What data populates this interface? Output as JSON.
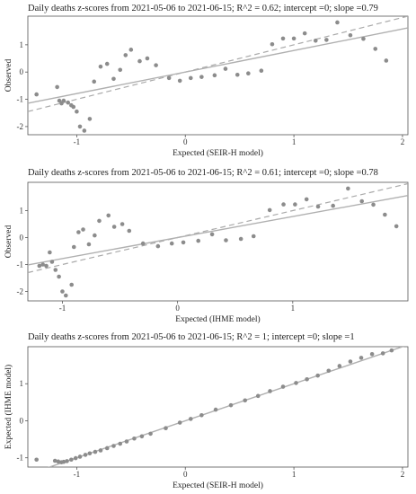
{
  "charts": [
    {
      "type": "scatter",
      "title": "Daily deaths z-scores from 2021-05-06 to 2021-06-15; R^2 = 0.62; intercept =0; slope =0.79",
      "xlabel": "Expected (SEIR-H model)",
      "ylabel": "Observed",
      "xlim": [
        -1.45,
        2.05
      ],
      "ylim": [
        -2.3,
        2.05
      ],
      "xticks": [
        -1,
        0,
        1,
        2
      ],
      "yticks": [
        -2,
        -1,
        0,
        1
      ],
      "fit_slope": 0.79,
      "fit_intercept": 0,
      "identity_line": true,
      "points": [
        [
          -1.37,
          -0.82
        ],
        [
          -1.18,
          -0.55
        ],
        [
          -1.16,
          -1.05
        ],
        [
          -1.14,
          -1.15
        ],
        [
          -1.12,
          -1.05
        ],
        [
          -1.08,
          -1.12
        ],
        [
          -1.05,
          -1.22
        ],
        [
          -1.03,
          -1.28
        ],
        [
          -1.0,
          -1.45
        ],
        [
          -0.97,
          -2.0
        ],
        [
          -0.93,
          -2.15
        ],
        [
          -0.88,
          -1.72
        ],
        [
          -0.84,
          -0.35
        ],
        [
          -0.78,
          0.2
        ],
        [
          -0.72,
          0.3
        ],
        [
          -0.66,
          -0.25
        ],
        [
          -0.6,
          0.08
        ],
        [
          -0.55,
          0.62
        ],
        [
          -0.5,
          0.82
        ],
        [
          -0.42,
          0.4
        ],
        [
          -0.35,
          0.5
        ],
        [
          -0.27,
          0.25
        ],
        [
          -0.15,
          -0.22
        ],
        [
          -0.05,
          -0.32
        ],
        [
          0.05,
          -0.22
        ],
        [
          0.15,
          -0.18
        ],
        [
          0.27,
          -0.12
        ],
        [
          0.37,
          0.12
        ],
        [
          0.48,
          -0.1
        ],
        [
          0.58,
          -0.05
        ],
        [
          0.7,
          0.05
        ],
        [
          0.8,
          1.02
        ],
        [
          0.9,
          1.23
        ],
        [
          1.0,
          1.23
        ],
        [
          1.1,
          1.42
        ],
        [
          1.2,
          1.15
        ],
        [
          1.3,
          1.18
        ],
        [
          1.4,
          1.82
        ],
        [
          1.52,
          1.35
        ],
        [
          1.64,
          1.22
        ],
        [
          1.75,
          0.85
        ],
        [
          1.85,
          0.42
        ]
      ]
    },
    {
      "type": "scatter",
      "title": "Daily deaths z-scores from 2021-05-06 to 2021-06-15; R^2 = 0.61; intercept =0; slope =0.78",
      "xlabel": "Expected (IHME model)",
      "ylabel": "Observed",
      "xlim": [
        -1.3,
        2.0
      ],
      "ylim": [
        -2.35,
        2.05
      ],
      "xticks": [
        -1,
        0,
        1
      ],
      "yticks": [
        -2,
        -1,
        0,
        1
      ],
      "fit_slope": 0.78,
      "fit_intercept": 0,
      "identity_line": true,
      "points": [
        [
          -1.2,
          -1.05
        ],
        [
          -1.17,
          -1.0
        ],
        [
          -1.14,
          -1.05
        ],
        [
          -1.11,
          -0.55
        ],
        [
          -1.09,
          -0.9
        ],
        [
          -1.06,
          -1.2
        ],
        [
          -1.03,
          -1.45
        ],
        [
          -1.0,
          -2.0
        ],
        [
          -0.97,
          -2.15
        ],
        [
          -0.92,
          -1.75
        ],
        [
          -0.9,
          -0.35
        ],
        [
          -0.86,
          0.2
        ],
        [
          -0.82,
          0.3
        ],
        [
          -0.77,
          -0.25
        ],
        [
          -0.72,
          0.08
        ],
        [
          -0.68,
          0.62
        ],
        [
          -0.6,
          0.82
        ],
        [
          -0.55,
          0.4
        ],
        [
          -0.48,
          0.5
        ],
        [
          -0.42,
          0.25
        ],
        [
          -0.3,
          -0.22
        ],
        [
          -0.17,
          -0.32
        ],
        [
          -0.05,
          -0.22
        ],
        [
          0.05,
          -0.18
        ],
        [
          0.18,
          -0.12
        ],
        [
          0.3,
          0.12
        ],
        [
          0.42,
          -0.1
        ],
        [
          0.55,
          -0.05
        ],
        [
          0.66,
          0.05
        ],
        [
          0.8,
          1.02
        ],
        [
          0.92,
          1.23
        ],
        [
          1.02,
          1.23
        ],
        [
          1.12,
          1.42
        ],
        [
          1.22,
          1.15
        ],
        [
          1.35,
          1.18
        ],
        [
          1.48,
          1.82
        ],
        [
          1.6,
          1.35
        ],
        [
          1.7,
          1.22
        ],
        [
          1.8,
          0.85
        ],
        [
          1.9,
          0.42
        ]
      ]
    },
    {
      "type": "scatter",
      "title": "Daily deaths z-scores from 2021-05-06 to 2021-06-15; R^2 = 1; intercept =0; slope =1",
      "xlabel": "Expected (SEIR-H model)",
      "ylabel": "Expected (IHME model)",
      "xlim": [
        -1.45,
        2.05
      ],
      "ylim": [
        -1.25,
        2.0
      ],
      "xticks": [
        -1,
        0,
        1,
        2
      ],
      "yticks": [
        -1,
        0,
        1
      ],
      "fit_slope": 1,
      "fit_intercept": 0,
      "identity_line": false,
      "points": [
        [
          -1.37,
          -1.05
        ],
        [
          -1.2,
          -1.08
        ],
        [
          -1.17,
          -1.1
        ],
        [
          -1.14,
          -1.12
        ],
        [
          -1.12,
          -1.11
        ],
        [
          -1.09,
          -1.09
        ],
        [
          -1.05,
          -1.05
        ],
        [
          -1.01,
          -1.01
        ],
        [
          -0.97,
          -0.97
        ],
        [
          -0.92,
          -0.92
        ],
        [
          -0.88,
          -0.88
        ],
        [
          -0.83,
          -0.84
        ],
        [
          -0.78,
          -0.8
        ],
        [
          -0.72,
          -0.74
        ],
        [
          -0.66,
          -0.68
        ],
        [
          -0.6,
          -0.62
        ],
        [
          -0.54,
          -0.56
        ],
        [
          -0.47,
          -0.48
        ],
        [
          -0.4,
          -0.42
        ],
        [
          -0.32,
          -0.35
        ],
        [
          -0.18,
          -0.2
        ],
        [
          -0.05,
          -0.05
        ],
        [
          0.05,
          0.05
        ],
        [
          0.15,
          0.15
        ],
        [
          0.28,
          0.3
        ],
        [
          0.42,
          0.42
        ],
        [
          0.55,
          0.55
        ],
        [
          0.67,
          0.67
        ],
        [
          0.78,
          0.8
        ],
        [
          0.9,
          0.92
        ],
        [
          1.02,
          1.02
        ],
        [
          1.12,
          1.12
        ],
        [
          1.22,
          1.22
        ],
        [
          1.32,
          1.35
        ],
        [
          1.42,
          1.48
        ],
        [
          1.52,
          1.6
        ],
        [
          1.62,
          1.7
        ],
        [
          1.72,
          1.8
        ],
        [
          1.82,
          1.82
        ],
        [
          1.9,
          1.9
        ]
      ]
    }
  ]
}
